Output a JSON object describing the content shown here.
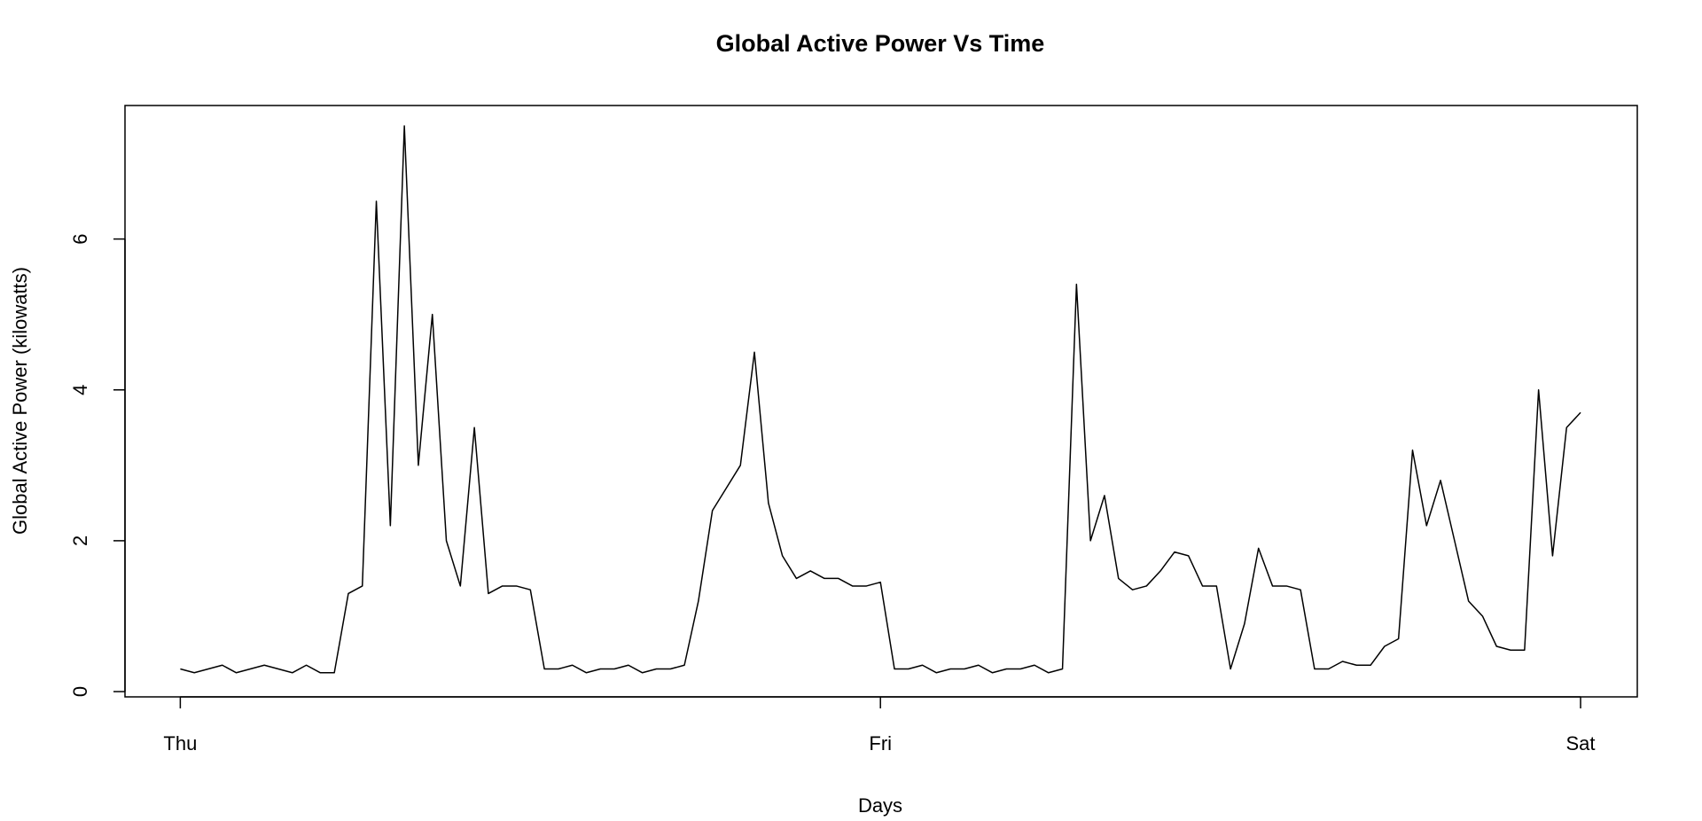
{
  "chart_data": {
    "type": "line",
    "title": "Global Active Power Vs Time",
    "xlabel": "Days",
    "ylabel": "Global Active Power (kilowatts)",
    "x": [
      0,
      0.02,
      0.04,
      0.06,
      0.08,
      0.1,
      0.12,
      0.14,
      0.16,
      0.18,
      0.2,
      0.22,
      0.24,
      0.26,
      0.28,
      0.3,
      0.32,
      0.34,
      0.36,
      0.38,
      0.4,
      0.42,
      0.44,
      0.46,
      0.48,
      0.5,
      0.52,
      0.54,
      0.56,
      0.58,
      0.6,
      0.62,
      0.64,
      0.66,
      0.68,
      0.7,
      0.72,
      0.74,
      0.76,
      0.78,
      0.8,
      0.82,
      0.84,
      0.86,
      0.88,
      0.9,
      0.92,
      0.94,
      0.96,
      0.98,
      1,
      1.02,
      1.04,
      1.06,
      1.08,
      1.1,
      1.12,
      1.14,
      1.16,
      1.18,
      1.2,
      1.22,
      1.24,
      1.26,
      1.28,
      1.3,
      1.32,
      1.34,
      1.36,
      1.38,
      1.4,
      1.42,
      1.44,
      1.46,
      1.48,
      1.5,
      1.52,
      1.54,
      1.56,
      1.58,
      1.6,
      1.62,
      1.64,
      1.66,
      1.68,
      1.7,
      1.72,
      1.74,
      1.76,
      1.78,
      1.8,
      1.82,
      1.84,
      1.86,
      1.88,
      1.9,
      1.92,
      1.94,
      1.96,
      1.98,
      2
    ],
    "series": [
      {
        "name": "Global Active Power",
        "color": "#000000",
        "values": [
          0.3,
          0.25,
          0.3,
          0.35,
          0.25,
          0.3,
          0.35,
          0.3,
          0.25,
          0.35,
          0.25,
          0.25,
          1.3,
          1.4,
          6.5,
          2.2,
          7.5,
          3.0,
          5.0,
          2.0,
          1.4,
          3.5,
          1.3,
          1.4,
          1.4,
          1.35,
          0.3,
          0.3,
          0.35,
          0.25,
          0.3,
          0.3,
          0.35,
          0.25,
          0.3,
          0.3,
          0.35,
          1.2,
          2.4,
          2.7,
          3.0,
          4.5,
          2.5,
          1.8,
          1.5,
          1.6,
          1.5,
          1.5,
          1.4,
          1.4,
          1.45,
          0.3,
          0.3,
          0.35,
          0.25,
          0.3,
          0.3,
          0.35,
          0.25,
          0.3,
          0.3,
          0.35,
          0.25,
          0.3,
          5.4,
          2.0,
          2.6,
          1.5,
          1.35,
          1.4,
          1.6,
          1.85,
          1.8,
          1.4,
          1.4,
          0.3,
          0.9,
          1.9,
          1.4,
          1.4,
          1.35,
          0.3,
          0.3,
          0.4,
          0.35,
          0.35,
          0.6,
          0.7,
          3.2,
          2.2,
          2.8,
          2.0,
          1.2,
          1.0,
          0.6,
          0.55,
          0.55,
          4.0,
          1.8,
          3.5,
          3.7
        ]
      }
    ],
    "xlim": [
      -0.079,
      2.081
    ],
    "ylim": [
      -0.07,
      7.77
    ],
    "xticks": [
      {
        "value": 0,
        "label": "Thu"
      },
      {
        "value": 1,
        "label": "Fri"
      },
      {
        "value": 2,
        "label": "Sat"
      }
    ],
    "yticks": [
      0,
      2,
      4,
      6
    ]
  }
}
